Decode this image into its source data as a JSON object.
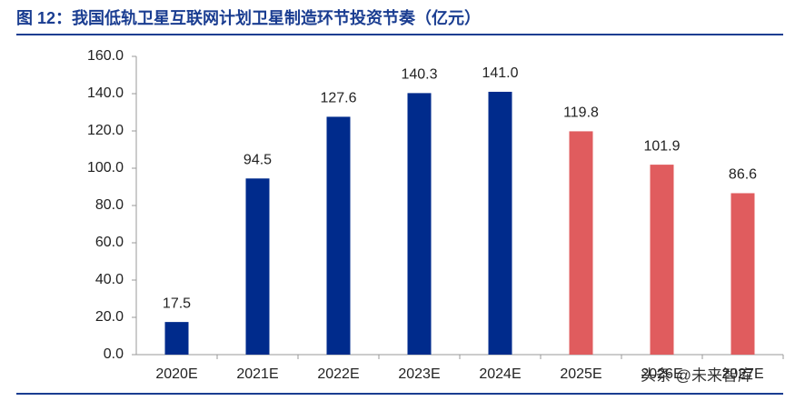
{
  "chart_data": {
    "type": "bar",
    "title": "图 12：我国低轨卫星互联网计划卫星制造环节投资节奏（亿元）",
    "categories": [
      "2020E",
      "2021E",
      "2022E",
      "2023E",
      "2024E",
      "2025E",
      "2026E",
      "2027E"
    ],
    "values": [
      17.5,
      94.5,
      127.6,
      140.3,
      141.0,
      119.8,
      101.9,
      86.6
    ],
    "value_labels": [
      "17.5",
      "94.5",
      "127.6",
      "140.3",
      "141.0",
      "119.8",
      "101.9",
      "86.6"
    ],
    "colors": [
      "#002b8c",
      "#002b8c",
      "#002b8c",
      "#002b8c",
      "#002b8c",
      "#e05c5e",
      "#e05c5e",
      "#e05c5e"
    ],
    "ylim": [
      0,
      160
    ],
    "yticks": [
      {
        "value": 0,
        "label": "0.0"
      },
      {
        "value": 20,
        "label": "20.0"
      },
      {
        "value": 40,
        "label": "40.0"
      },
      {
        "value": 60,
        "label": "60.0"
      },
      {
        "value": 80,
        "label": "80.0"
      },
      {
        "value": 100,
        "label": "100.0"
      },
      {
        "value": 120,
        "label": "120.0"
      },
      {
        "value": 140,
        "label": "140.0"
      },
      {
        "value": 160,
        "label": "160.0"
      }
    ],
    "grid": false,
    "watermark": "头条 @未来智库"
  }
}
